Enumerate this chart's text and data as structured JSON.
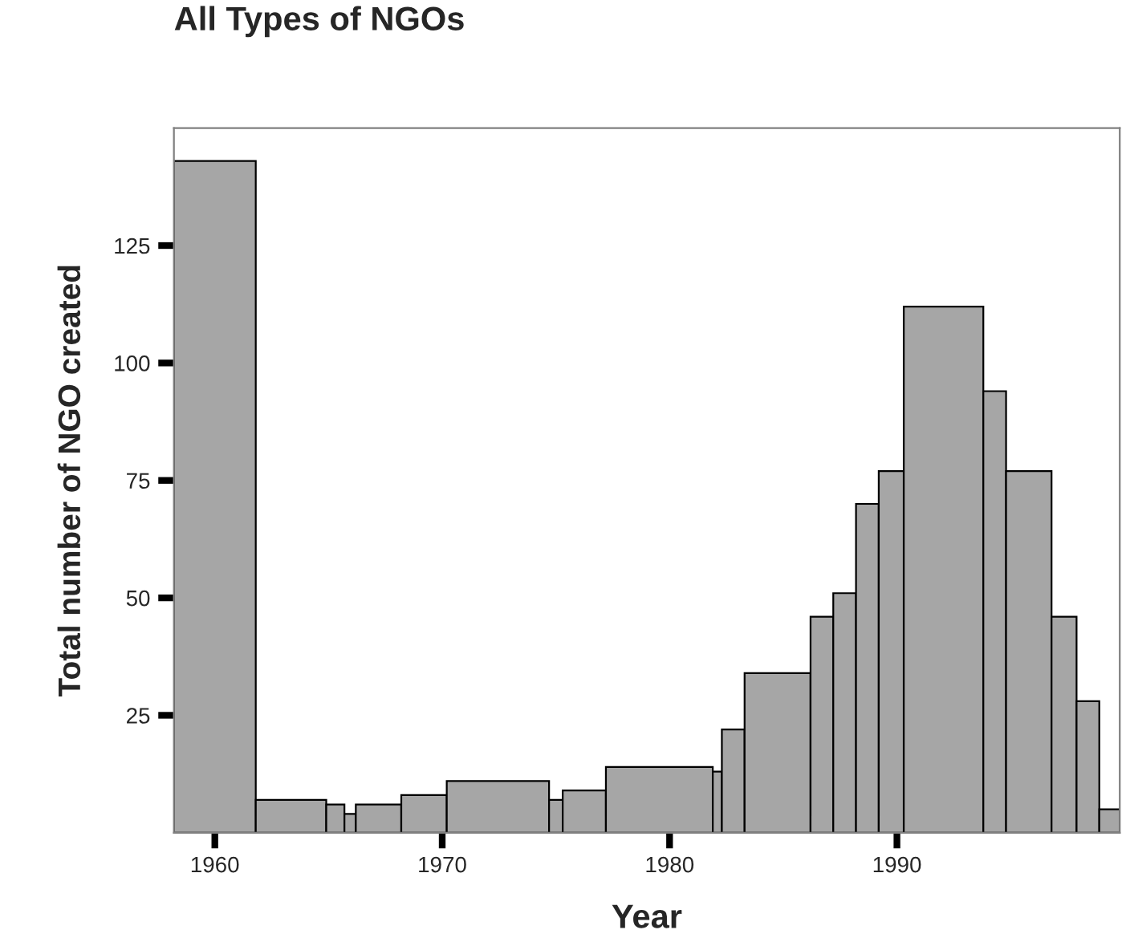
{
  "chart_data": {
    "type": "histogram",
    "title": "All Types of NGOs",
    "xlabel": "Year",
    "ylabel": "Total number of NGO created",
    "bins": [
      1958.2,
      1961.8,
      1964.9,
      1965.7,
      1966.2,
      1968.2,
      1970.2,
      1974.7,
      1975.3,
      1977.2,
      1981.9,
      1982.3,
      1983.3,
      1986.2,
      1987.2,
      1988.2,
      1989.2,
      1990.3,
      1993.8,
      1994.8,
      1996.8,
      1997.9,
      1998.9,
      1999.8
    ],
    "values": [
      143,
      7,
      6,
      4,
      6,
      8,
      11,
      7,
      9,
      14,
      13,
      22,
      34,
      46,
      51,
      70,
      77,
      112,
      94,
      77,
      46,
      28,
      5
    ],
    "color": "#a6a6a6",
    "xlim": [
      1958.2,
      1999.8
    ],
    "xticks": [
      1960,
      1970,
      1980,
      1990
    ],
    "ylim": [
      0,
      150
    ],
    "yticks": [
      25,
      50,
      75,
      100,
      125
    ],
    "grid": false
  }
}
